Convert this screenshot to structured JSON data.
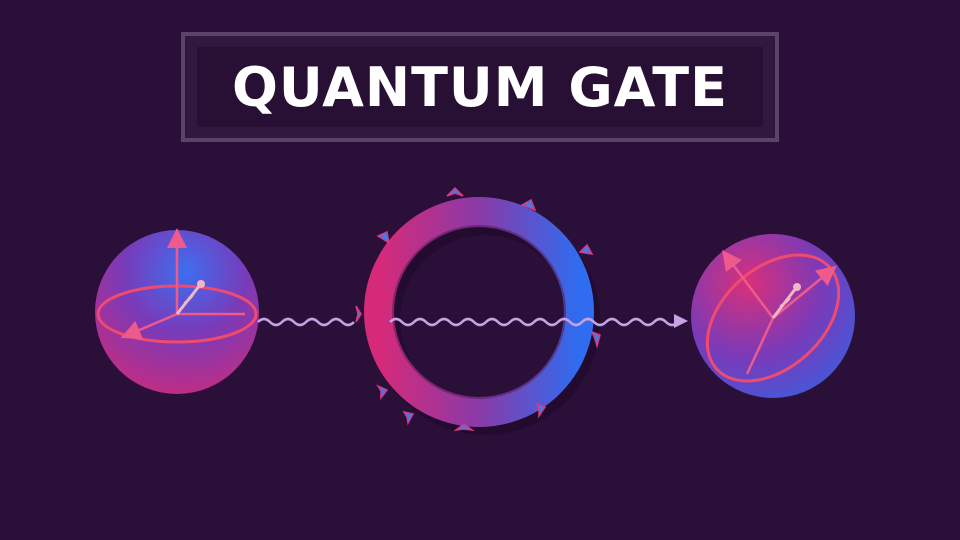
{
  "title": "QUANTUM GATE",
  "colors": {
    "background": "#2a0f38",
    "frame": "#5a4566",
    "magenta": "#e0307a",
    "blue": "#2f64e6",
    "wave": "#c9a2e6"
  },
  "icons": [
    "qubit-sphere-input",
    "quantum-gate-ring",
    "qubit-sphere-output",
    "wave-arrow"
  ]
}
